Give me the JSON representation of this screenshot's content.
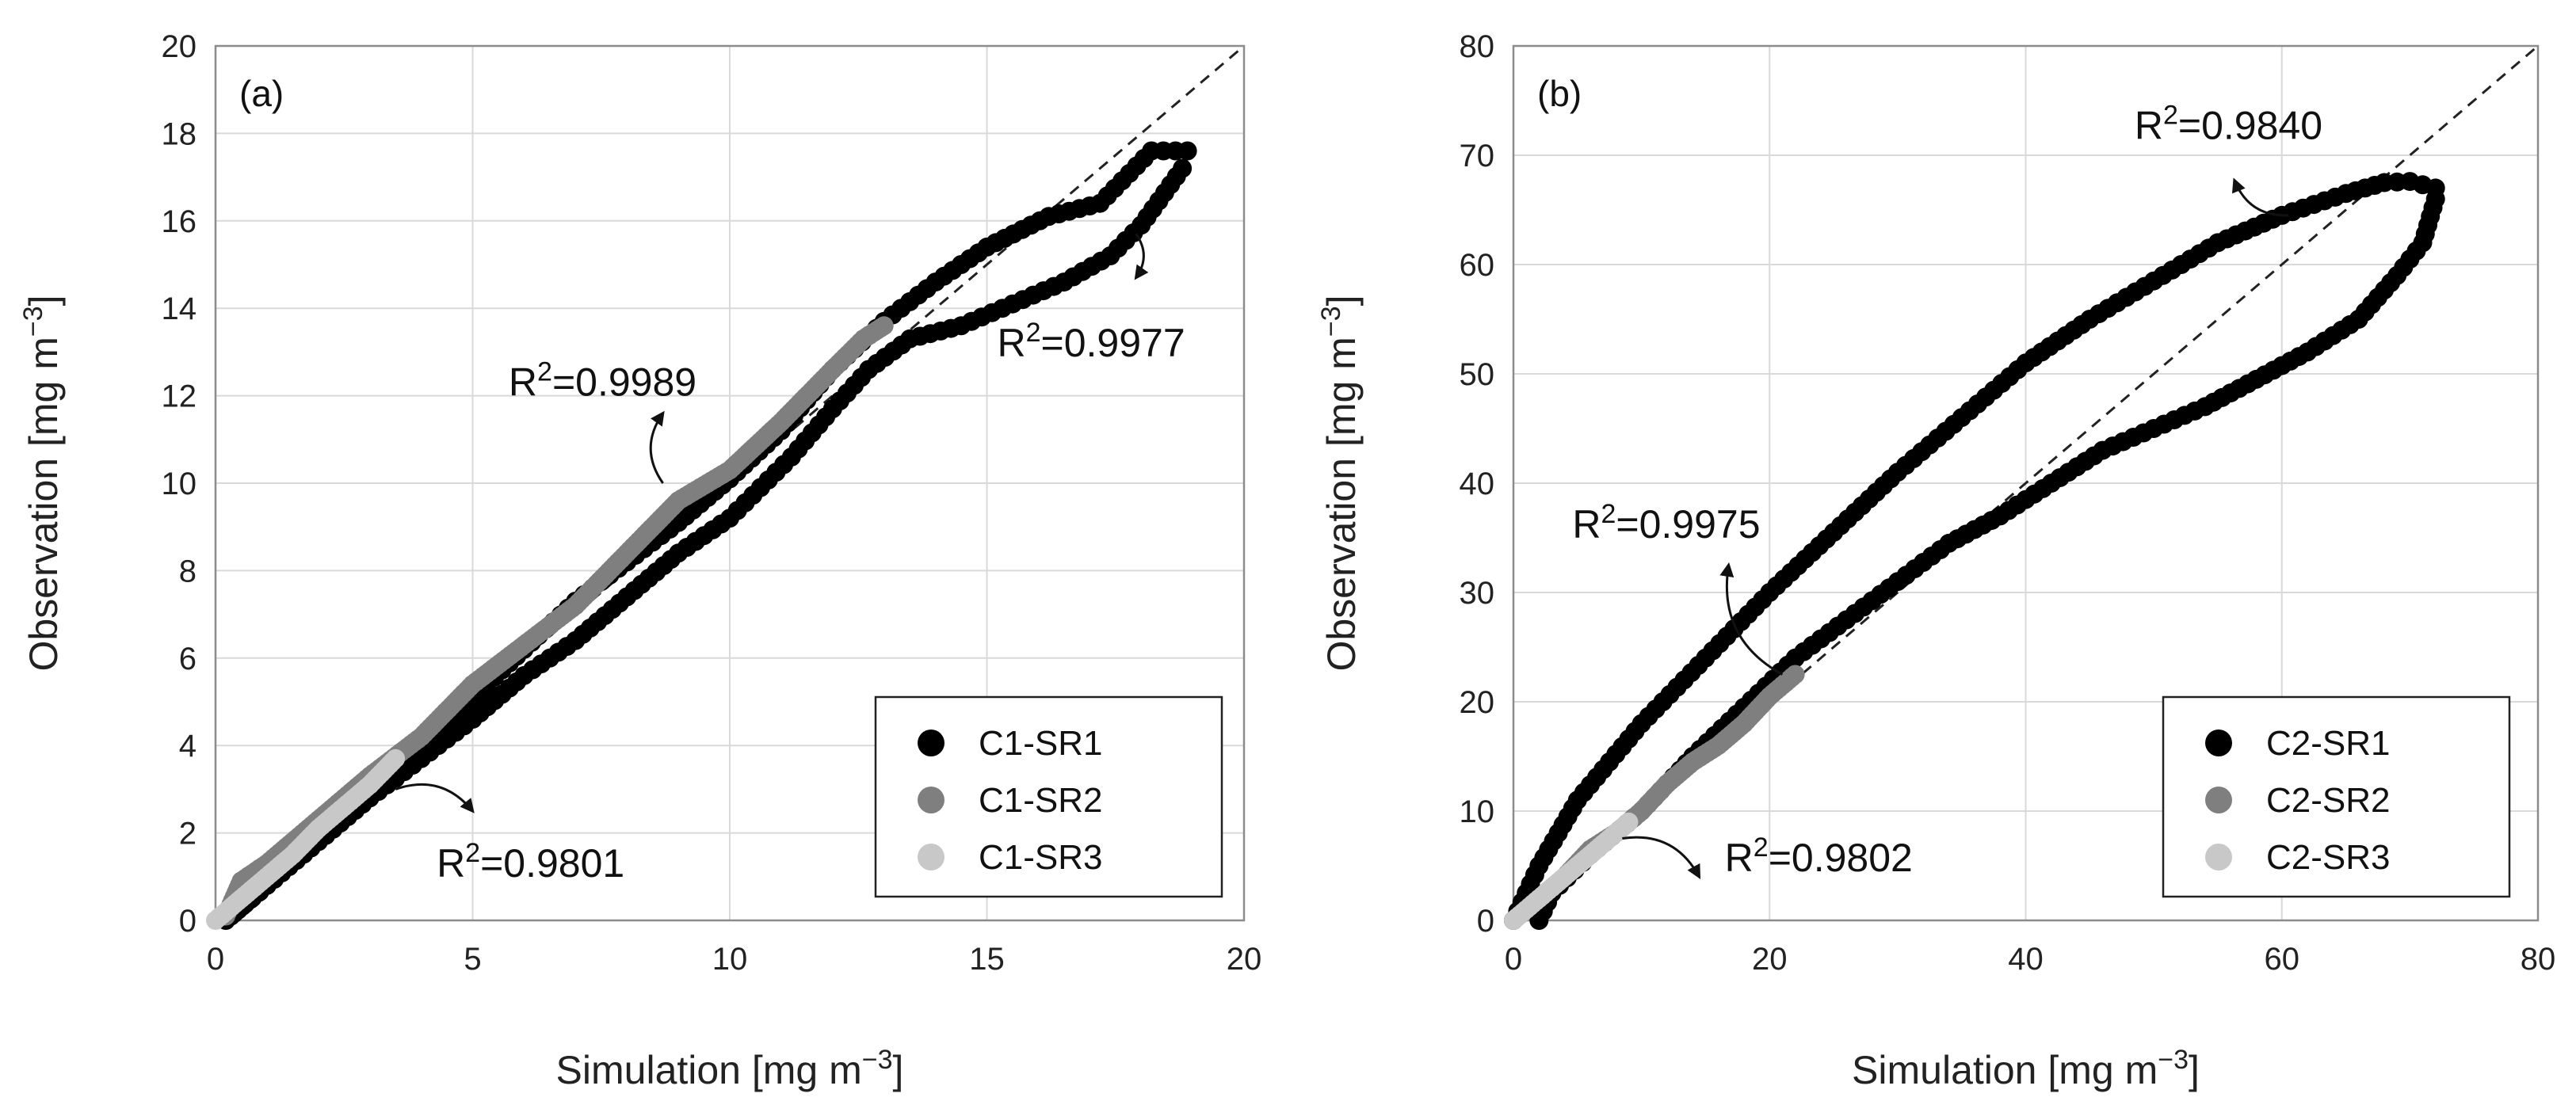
{
  "chart_data": [
    {
      "type": "scatter",
      "panel_label": "(a)",
      "xlabel": "Simulation [mg m",
      "ylabel": "Observation [mg m",
      "unit_exponent": "−3",
      "xlim": [
        0,
        20
      ],
      "ylim": [
        0,
        20
      ],
      "xticks": [
        0,
        5,
        10,
        15,
        20
      ],
      "yticks": [
        0,
        2,
        4,
        6,
        8,
        10,
        12,
        14,
        16,
        18,
        20
      ],
      "grid": true,
      "reference_line": "1:1 dashed",
      "legend_position": "bottom-right",
      "series": [
        {
          "name": "C1-SR1",
          "color": "#000000",
          "rise": [
            [
              0.2,
              0
            ],
            [
              1,
              0.8
            ],
            [
              2,
              1.8
            ],
            [
              3,
              2.8
            ],
            [
              4,
              3.7
            ],
            [
              5,
              4.6
            ],
            [
              6,
              5.6
            ],
            [
              7,
              6.4
            ],
            [
              8,
              7.4
            ],
            [
              9,
              8.4
            ],
            [
              10,
              9.2
            ],
            [
              10.6,
              9.9
            ],
            [
              11.2,
              10.6
            ],
            [
              12,
              11.7
            ],
            [
              12.7,
              12.6
            ],
            [
              13.5,
              13.3
            ],
            [
              14.5,
              13.6
            ],
            [
              15.5,
              14.1
            ],
            [
              16.5,
              14.6
            ],
            [
              17.4,
              15.2
            ],
            [
              18,
              15.9
            ],
            [
              18.8,
              17.2
            ]
          ],
          "fall": [
            [
              18.9,
              17.6
            ],
            [
              18.2,
              17.6
            ],
            [
              17.2,
              16.4
            ],
            [
              16.2,
              16.1
            ],
            [
              15,
              15.4
            ],
            [
              14,
              14.6
            ],
            [
              13,
              13.7
            ],
            [
              12,
              12.6
            ],
            [
              11,
              11.2
            ],
            [
              10,
              10.1
            ],
            [
              9,
              9.1
            ],
            [
              8,
              8.2
            ],
            [
              7,
              7.3
            ],
            [
              6,
              6.2
            ],
            [
              5,
              5.1
            ],
            [
              4,
              4.0
            ],
            [
              3,
              3.0
            ],
            [
              2,
              1.9
            ],
            [
              1,
              0.8
            ],
            [
              0.3,
              0.1
            ]
          ]
        },
        {
          "name": "C1-SR2",
          "color": "#7f7f7f",
          "line": [
            [
              0.2,
              0.1
            ],
            [
              0.5,
              0.9
            ],
            [
              1,
              1.3
            ],
            [
              2,
              2.3
            ],
            [
              3,
              3.3
            ],
            [
              4,
              4.2
            ],
            [
              5,
              5.4
            ],
            [
              6,
              6.3
            ],
            [
              7,
              7.2
            ],
            [
              8,
              8.4
            ],
            [
              9,
              9.6
            ],
            [
              10,
              10.3
            ],
            [
              11,
              11.4
            ],
            [
              12,
              12.6
            ],
            [
              12.6,
              13.3
            ],
            [
              13,
              13.6
            ]
          ]
        },
        {
          "name": "C1-SR3",
          "color": "#c8c8c8",
          "line": [
            [
              0,
              0
            ],
            [
              0.5,
              0.5
            ],
            [
              1,
              1.0
            ],
            [
              1.5,
              1.5
            ],
            [
              2,
              2.1
            ],
            [
              2.5,
              2.6
            ],
            [
              3,
              3.1
            ],
            [
              3.5,
              3.7
            ]
          ]
        }
      ],
      "annotations": [
        {
          "text": "R²=0.9977",
          "x": 15.2,
          "y": 12.9,
          "arrow_to": [
            17.9,
            15.7
          ],
          "arrow_tip": [
            17.9,
            14.7
          ]
        },
        {
          "text": "R²=0.9989",
          "x": 5.7,
          "y": 12.0,
          "arrow_to": [
            8.7,
            10.0
          ],
          "arrow_tip": [
            8.7,
            11.6
          ]
        },
        {
          "text": "R²=0.9801",
          "x": 4.3,
          "y": 1.0,
          "arrow_to": [
            3.5,
            3.0
          ],
          "arrow_tip": [
            5.0,
            2.5
          ]
        }
      ]
    },
    {
      "type": "scatter",
      "panel_label": "(b)",
      "xlabel": "Simulation [mg m",
      "ylabel": "Observation [mg m",
      "unit_exponent": "−3",
      "xlim": [
        0,
        80
      ],
      "ylim": [
        0,
        80
      ],
      "xticks": [
        0,
        20,
        40,
        60,
        80
      ],
      "yticks": [
        0,
        10,
        20,
        30,
        40,
        50,
        60,
        70,
        80
      ],
      "grid": true,
      "reference_line": "1:1 dashed",
      "legend_position": "bottom-right",
      "series": [
        {
          "name": "C2-SR1",
          "color": "#000000",
          "rise": [
            [
              0,
              0
            ],
            [
              2,
              5
            ],
            [
              5,
              11
            ],
            [
              10,
              18
            ],
            [
              15,
              24
            ],
            [
              20,
              30
            ],
            [
              25,
              35.5
            ],
            [
              30,
              41
            ],
            [
              35,
              46
            ],
            [
              40,
              51
            ],
            [
              45,
              55
            ],
            [
              50,
              58.5
            ],
            [
              55,
              62
            ],
            [
              60,
              64.5
            ],
            [
              65,
              66.5
            ],
            [
              68,
              67.5
            ],
            [
              70,
              67.6
            ],
            [
              72,
              67
            ]
          ],
          "fall": [
            [
              72,
              66
            ],
            [
              71,
              62
            ],
            [
              69,
              59
            ],
            [
              66,
              55
            ],
            [
              62,
              52
            ],
            [
              58,
              49.5
            ],
            [
              54,
              47
            ],
            [
              50,
              45
            ],
            [
              46,
              43
            ],
            [
              42,
              40
            ],
            [
              38,
              37
            ],
            [
              34,
              34.5
            ],
            [
              30,
              31
            ],
            [
              26,
              27.5
            ],
            [
              22,
              24
            ],
            [
              18,
              19.5
            ],
            [
              14,
              15
            ],
            [
              10,
              10
            ],
            [
              6,
              6
            ],
            [
              3,
              2.5
            ],
            [
              2,
              0
            ]
          ]
        },
        {
          "name": "C2-SR2",
          "color": "#7f7f7f",
          "line": [
            [
              0,
              0
            ],
            [
              2,
              2
            ],
            [
              4,
              4
            ],
            [
              6,
              6.5
            ],
            [
              8,
              8
            ],
            [
              10,
              10
            ],
            [
              12,
              12.5
            ],
            [
              14,
              14.5
            ],
            [
              16,
              16
            ],
            [
              18,
              18
            ],
            [
              20,
              20.5
            ],
            [
              22,
              22.5
            ]
          ]
        },
        {
          "name": "C2-SR3",
          "color": "#c8c8c8",
          "line": [
            [
              0,
              0
            ],
            [
              1,
              1
            ],
            [
              2,
              2
            ],
            [
              3,
              3
            ],
            [
              4,
              4
            ],
            [
              5,
              5
            ],
            [
              6,
              6
            ],
            [
              7,
              7
            ],
            [
              8,
              8
            ],
            [
              9,
              9
            ]
          ]
        }
      ],
      "annotations": [
        {
          "text": "R²=0.9840",
          "x": 48.5,
          "y": 71.5,
          "arrow_to": [
            60.5,
            64.5
          ],
          "arrow_tip": [
            56.3,
            67.7
          ]
        },
        {
          "text": "R²=0.9975",
          "x": 4.6,
          "y": 35.0,
          "arrow_to": [
            21.0,
            22.5
          ],
          "arrow_tip": [
            16.8,
            32.5
          ]
        },
        {
          "text": "R²=0.9802",
          "x": 16.5,
          "y": 4.5,
          "arrow_to": [
            8.5,
            7.5
          ],
          "arrow_tip": [
            14.5,
            4.0
          ]
        }
      ]
    }
  ]
}
